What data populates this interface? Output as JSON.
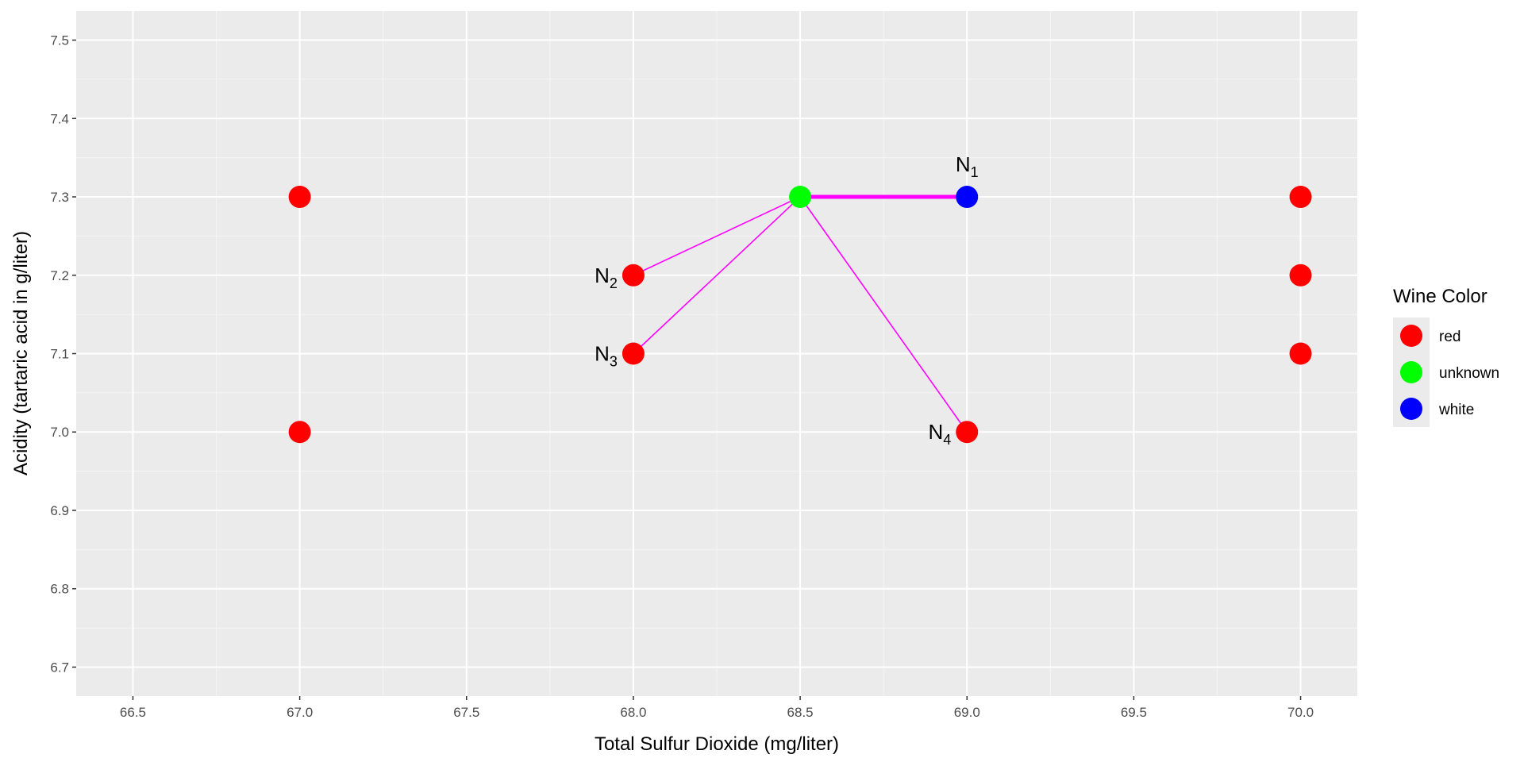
{
  "chart_data": {
    "type": "scatter",
    "title": "",
    "xlabel": "Total Sulfur Dioxide (mg/liter)",
    "ylabel": "Acidity (tartaric acid in g/liter)",
    "xlim": [
      66.33,
      70.17
    ],
    "ylim": [
      6.663,
      7.537
    ],
    "x_ticks": [
      66.5,
      67.0,
      67.5,
      68.0,
      68.5,
      69.0,
      69.5,
      70.0
    ],
    "x_tick_labels": [
      "66.5",
      "67.0",
      "67.5",
      "68.0",
      "68.5",
      "69.0",
      "69.5",
      "70.0"
    ],
    "y_ticks": [
      6.7,
      6.8,
      6.9,
      7.0,
      7.1,
      7.2,
      7.3,
      7.4,
      7.5
    ],
    "y_tick_labels": [
      "6.7",
      "6.8",
      "6.9",
      "7.0",
      "7.1",
      "7.2",
      "7.3",
      "7.4",
      "7.5"
    ],
    "grid": true,
    "legend": {
      "title": "Wine Color",
      "position": "right",
      "entries": [
        {
          "label": "red",
          "color": "#ff0000"
        },
        {
          "label": "unknown",
          "color": "#00ff00"
        },
        {
          "label": "white",
          "color": "#0000ff"
        }
      ]
    },
    "points": [
      {
        "x": 67.0,
        "y": 7.3,
        "class": "red"
      },
      {
        "x": 67.0,
        "y": 7.0,
        "class": "red"
      },
      {
        "x": 68.0,
        "y": 7.2,
        "class": "red"
      },
      {
        "x": 68.0,
        "y": 7.1,
        "class": "red"
      },
      {
        "x": 68.5,
        "y": 7.3,
        "class": "unknown"
      },
      {
        "x": 69.0,
        "y": 7.3,
        "class": "white"
      },
      {
        "x": 69.0,
        "y": 7.0,
        "class": "red"
      },
      {
        "x": 70.0,
        "y": 7.3,
        "class": "red"
      },
      {
        "x": 70.0,
        "y": 7.2,
        "class": "red"
      },
      {
        "x": 70.0,
        "y": 7.1,
        "class": "red"
      }
    ],
    "neighbor_lines": {
      "from": {
        "x": 68.5,
        "y": 7.3
      },
      "color": "#ff00ff",
      "to": [
        {
          "x": 69.0,
          "y": 7.3,
          "weight": "thick"
        },
        {
          "x": 68.0,
          "y": 7.2,
          "weight": "thin"
        },
        {
          "x": 68.0,
          "y": 7.1,
          "weight": "thin"
        },
        {
          "x": 69.0,
          "y": 7.0,
          "weight": "thin"
        }
      ]
    },
    "annotations": [
      {
        "base": "N",
        "sub": "1",
        "x": 69.0,
        "y": 7.3,
        "placement": "above"
      },
      {
        "base": "N",
        "sub": "2",
        "x": 68.0,
        "y": 7.2,
        "placement": "left"
      },
      {
        "base": "N",
        "sub": "3",
        "x": 68.0,
        "y": 7.1,
        "placement": "left"
      },
      {
        "base": "N",
        "sub": "4",
        "x": 69.0,
        "y": 7.0,
        "placement": "left"
      }
    ]
  }
}
